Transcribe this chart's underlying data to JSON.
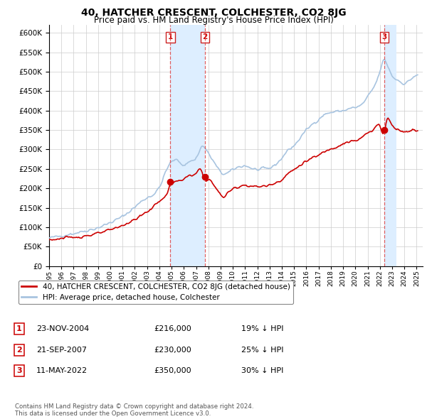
{
  "title": "40, HATCHER CRESCENT, COLCHESTER, CO2 8JG",
  "subtitle": "Price paid vs. HM Land Registry's House Price Index (HPI)",
  "footer": "Contains HM Land Registry data © Crown copyright and database right 2024.\nThis data is licensed under the Open Government Licence v3.0.",
  "legend_house": "40, HATCHER CRESCENT, COLCHESTER, CO2 8JG (detached house)",
  "legend_hpi": "HPI: Average price, detached house, Colchester",
  "transactions": [
    {
      "num": 1,
      "date": "23-NOV-2004",
      "price": "£216,000",
      "pct": "19% ↓ HPI",
      "year": 2004.9,
      "price_val": 216000
    },
    {
      "num": 2,
      "date": "21-SEP-2007",
      "price": "£230,000",
      "pct": "25% ↓ HPI",
      "year": 2007.72,
      "price_val": 230000
    },
    {
      "num": 3,
      "date": "11-MAY-2022",
      "price": "£350,000",
      "pct": "30% ↓ HPI",
      "year": 2022.36,
      "price_val": 350000
    }
  ],
  "hpi_color": "#a8c4e0",
  "house_color": "#cc0000",
  "shading_color": "#ddeeff",
  "ylim": [
    0,
    620000
  ],
  "yticks": [
    0,
    50000,
    100000,
    150000,
    200000,
    250000,
    300000,
    350000,
    400000,
    450000,
    500000,
    550000,
    600000
  ],
  "background_color": "#ffffff",
  "grid_color": "#cccccc",
  "xlim_left": 1995.0,
  "xlim_right": 2025.5
}
